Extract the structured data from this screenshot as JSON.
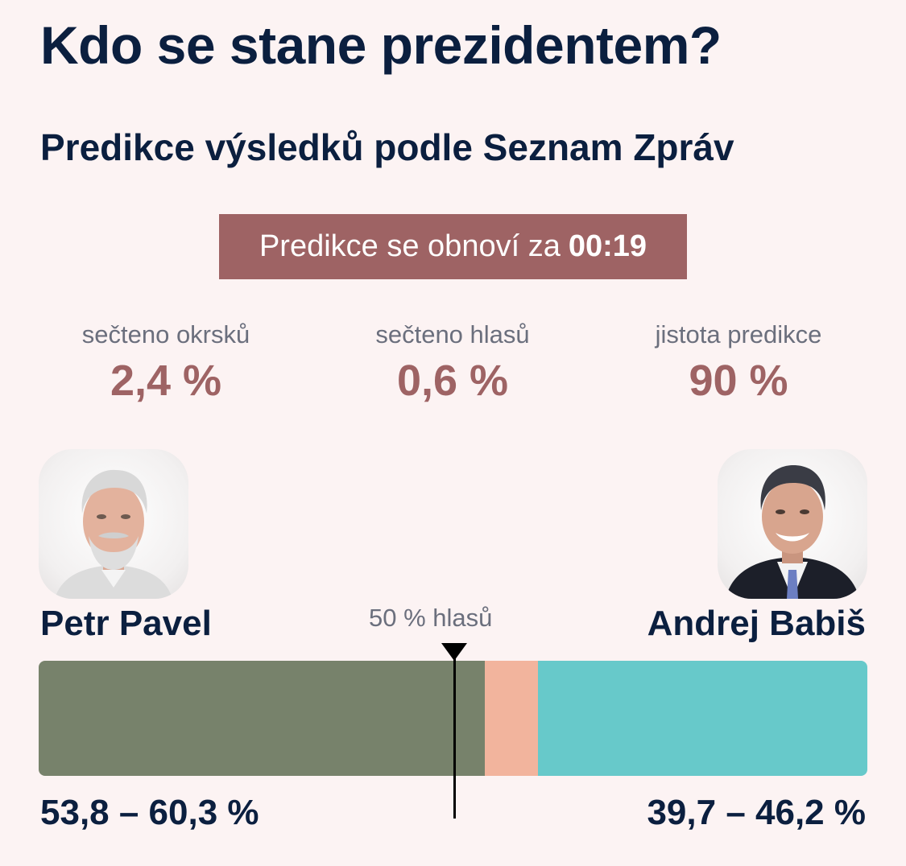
{
  "title": "Kdo se stane prezidentem?",
  "subtitle": "Predikce výsledků podle Seznam Zpráv",
  "countdown": {
    "text": "Predikce se obnoví za",
    "time": "00:19"
  },
  "stats": [
    {
      "label": "sečteno okrsků",
      "value": "2,4 %"
    },
    {
      "label": "sečteno hlasů",
      "value": "0,6 %"
    },
    {
      "label": "jistota predikce",
      "value": "90 %"
    }
  ],
  "candidates": {
    "left": {
      "name": "Petr Pavel",
      "range": "53,8 – 60,3 %",
      "low": 53.8,
      "high": 60.3,
      "color": "#77826b"
    },
    "right": {
      "name": "Andrej Babiš",
      "range": "39,7 – 46,2 %",
      "low": 39.7,
      "high": 46.2,
      "color": "#67c9ca"
    }
  },
  "uncertainty_color": "#f2b49d",
  "half_label": "50 % hlasů",
  "colors": {
    "accent": "#9e6364",
    "text": "#0b1f3f",
    "background": "#fcf3f3"
  }
}
